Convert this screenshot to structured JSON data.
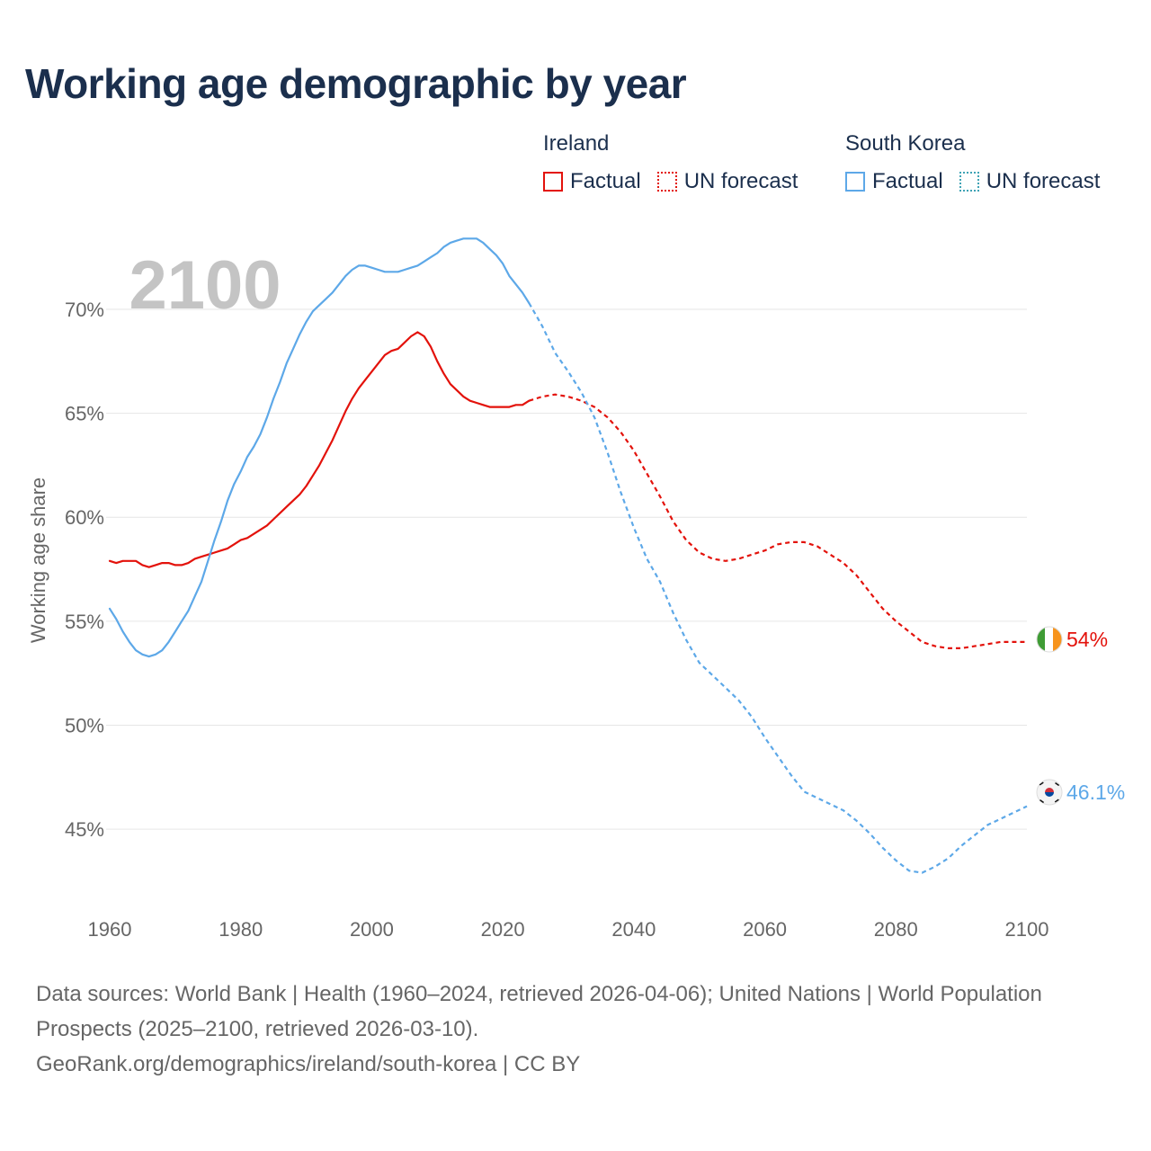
{
  "title": "Working age demographic by year",
  "year_display": "2100",
  "legend": {
    "groups": [
      {
        "name": "Ireland",
        "color": "#e3120b",
        "factual": "Factual",
        "forecast": "UN forecast"
      },
      {
        "name": "South Korea",
        "color": "#5da8e8",
        "factual": "Factual",
        "forecast": "UN forecast"
      }
    ]
  },
  "footer": {
    "sources": "Data sources: World Bank | Health (1960–2024, retrieved 2026-04-06); United Nations | World Population Prospects (2025–2100, retrieved 2026-03-10).",
    "attribution": "GeoRank.org/demographics/ireland/south-korea | CC BY"
  },
  "chart_data": {
    "type": "line",
    "title": "Working age demographic by year",
    "xlabel": "",
    "ylabel": "Working age share",
    "xlim": [
      1960,
      2100
    ],
    "ylim": [
      41.5,
      73.5
    ],
    "x_ticks": [
      1960,
      1980,
      2000,
      2020,
      2040,
      2060,
      2080,
      2100
    ],
    "y_ticks": [
      45,
      50,
      55,
      60,
      65,
      70
    ],
    "y_tick_labels": [
      "45%",
      "50%",
      "55%",
      "60%",
      "65%",
      "70%"
    ],
    "grid": true,
    "forecast_start": 2024,
    "series": [
      {
        "name": "Ireland",
        "color": "#e3120b",
        "end_label": "54%",
        "flag": "ireland-flag",
        "points": [
          [
            1960,
            57.9
          ],
          [
            1961,
            57.8
          ],
          [
            1962,
            57.9
          ],
          [
            1963,
            57.9
          ],
          [
            1964,
            57.9
          ],
          [
            1965,
            57.7
          ],
          [
            1966,
            57.6
          ],
          [
            1967,
            57.7
          ],
          [
            1968,
            57.8
          ],
          [
            1969,
            57.8
          ],
          [
            1970,
            57.7
          ],
          [
            1971,
            57.7
          ],
          [
            1972,
            57.8
          ],
          [
            1973,
            58.0
          ],
          [
            1974,
            58.1
          ],
          [
            1975,
            58.2
          ],
          [
            1976,
            58.3
          ],
          [
            1977,
            58.4
          ],
          [
            1978,
            58.5
          ],
          [
            1979,
            58.7
          ],
          [
            1980,
            58.9
          ],
          [
            1981,
            59.0
          ],
          [
            1982,
            59.2
          ],
          [
            1983,
            59.4
          ],
          [
            1984,
            59.6
          ],
          [
            1985,
            59.9
          ],
          [
            1986,
            60.2
          ],
          [
            1987,
            60.5
          ],
          [
            1988,
            60.8
          ],
          [
            1989,
            61.1
          ],
          [
            1990,
            61.5
          ],
          [
            1991,
            62.0
          ],
          [
            1992,
            62.5
          ],
          [
            1993,
            63.1
          ],
          [
            1994,
            63.7
          ],
          [
            1995,
            64.4
          ],
          [
            1996,
            65.1
          ],
          [
            1997,
            65.7
          ],
          [
            1998,
            66.2
          ],
          [
            1999,
            66.6
          ],
          [
            2000,
            67.0
          ],
          [
            2001,
            67.4
          ],
          [
            2002,
            67.8
          ],
          [
            2003,
            68.0
          ],
          [
            2004,
            68.1
          ],
          [
            2005,
            68.4
          ],
          [
            2006,
            68.7
          ],
          [
            2007,
            68.9
          ],
          [
            2008,
            68.7
          ],
          [
            2009,
            68.2
          ],
          [
            2010,
            67.5
          ],
          [
            2011,
            66.9
          ],
          [
            2012,
            66.4
          ],
          [
            2013,
            66.1
          ],
          [
            2014,
            65.8
          ],
          [
            2015,
            65.6
          ],
          [
            2016,
            65.5
          ],
          [
            2017,
            65.4
          ],
          [
            2018,
            65.3
          ],
          [
            2019,
            65.3
          ],
          [
            2020,
            65.3
          ],
          [
            2021,
            65.3
          ],
          [
            2022,
            65.4
          ],
          [
            2023,
            65.4
          ],
          [
            2024,
            65.6
          ],
          [
            2026,
            65.8
          ],
          [
            2028,
            65.9
          ],
          [
            2030,
            65.8
          ],
          [
            2032,
            65.6
          ],
          [
            2034,
            65.3
          ],
          [
            2036,
            64.8
          ],
          [
            2038,
            64.1
          ],
          [
            2040,
            63.2
          ],
          [
            2042,
            62.1
          ],
          [
            2044,
            61.0
          ],
          [
            2046,
            59.8
          ],
          [
            2048,
            58.9
          ],
          [
            2050,
            58.3
          ],
          [
            2052,
            58.0
          ],
          [
            2054,
            57.9
          ],
          [
            2056,
            58.0
          ],
          [
            2058,
            58.2
          ],
          [
            2060,
            58.4
          ],
          [
            2062,
            58.7
          ],
          [
            2064,
            58.8
          ],
          [
            2066,
            58.8
          ],
          [
            2068,
            58.6
          ],
          [
            2070,
            58.2
          ],
          [
            2072,
            57.8
          ],
          [
            2074,
            57.2
          ],
          [
            2076,
            56.4
          ],
          [
            2078,
            55.6
          ],
          [
            2080,
            55.0
          ],
          [
            2082,
            54.5
          ],
          [
            2084,
            54.0
          ],
          [
            2086,
            53.8
          ],
          [
            2088,
            53.7
          ],
          [
            2090,
            53.7
          ],
          [
            2092,
            53.8
          ],
          [
            2094,
            53.9
          ],
          [
            2096,
            54.0
          ],
          [
            2098,
            54.0
          ],
          [
            2100,
            54.0
          ]
        ]
      },
      {
        "name": "South Korea",
        "color": "#5da8e8",
        "end_label": "46.1%",
        "flag": "south-korea-flag",
        "points": [
          [
            1960,
            55.6
          ],
          [
            1961,
            55.1
          ],
          [
            1962,
            54.5
          ],
          [
            1963,
            54.0
          ],
          [
            1964,
            53.6
          ],
          [
            1965,
            53.4
          ],
          [
            1966,
            53.3
          ],
          [
            1967,
            53.4
          ],
          [
            1968,
            53.6
          ],
          [
            1969,
            54.0
          ],
          [
            1970,
            54.5
          ],
          [
            1971,
            55.0
          ],
          [
            1972,
            55.5
          ],
          [
            1973,
            56.2
          ],
          [
            1974,
            56.9
          ],
          [
            1975,
            57.9
          ],
          [
            1976,
            58.9
          ],
          [
            1977,
            59.8
          ],
          [
            1978,
            60.8
          ],
          [
            1979,
            61.6
          ],
          [
            1980,
            62.2
          ],
          [
            1981,
            62.9
          ],
          [
            1982,
            63.4
          ],
          [
            1983,
            64.0
          ],
          [
            1984,
            64.8
          ],
          [
            1985,
            65.7
          ],
          [
            1986,
            66.5
          ],
          [
            1987,
            67.4
          ],
          [
            1988,
            68.1
          ],
          [
            1989,
            68.8
          ],
          [
            1990,
            69.4
          ],
          [
            1991,
            69.9
          ],
          [
            1992,
            70.2
          ],
          [
            1993,
            70.5
          ],
          [
            1994,
            70.8
          ],
          [
            1995,
            71.2
          ],
          [
            1996,
            71.6
          ],
          [
            1997,
            71.9
          ],
          [
            1998,
            72.1
          ],
          [
            1999,
            72.1
          ],
          [
            2000,
            72.0
          ],
          [
            2001,
            71.9
          ],
          [
            2002,
            71.8
          ],
          [
            2003,
            71.8
          ],
          [
            2004,
            71.8
          ],
          [
            2005,
            71.9
          ],
          [
            2006,
            72.0
          ],
          [
            2007,
            72.1
          ],
          [
            2008,
            72.3
          ],
          [
            2009,
            72.5
          ],
          [
            2010,
            72.7
          ],
          [
            2011,
            73.0
          ],
          [
            2012,
            73.2
          ],
          [
            2013,
            73.3
          ],
          [
            2014,
            73.4
          ],
          [
            2015,
            73.4
          ],
          [
            2016,
            73.4
          ],
          [
            2017,
            73.2
          ],
          [
            2018,
            72.9
          ],
          [
            2019,
            72.6
          ],
          [
            2020,
            72.2
          ],
          [
            2021,
            71.6
          ],
          [
            2022,
            71.2
          ],
          [
            2023,
            70.8
          ],
          [
            2024,
            70.3
          ],
          [
            2026,
            69.2
          ],
          [
            2028,
            67.9
          ],
          [
            2030,
            67.0
          ],
          [
            2032,
            66.0
          ],
          [
            2034,
            64.8
          ],
          [
            2036,
            63.1
          ],
          [
            2038,
            61.2
          ],
          [
            2040,
            59.5
          ],
          [
            2042,
            58.0
          ],
          [
            2044,
            56.9
          ],
          [
            2046,
            55.4
          ],
          [
            2048,
            54.1
          ],
          [
            2050,
            53.0
          ],
          [
            2052,
            52.4
          ],
          [
            2054,
            51.8
          ],
          [
            2056,
            51.2
          ],
          [
            2058,
            50.4
          ],
          [
            2060,
            49.4
          ],
          [
            2062,
            48.5
          ],
          [
            2064,
            47.6
          ],
          [
            2066,
            46.8
          ],
          [
            2068,
            46.5
          ],
          [
            2070,
            46.2
          ],
          [
            2072,
            45.9
          ],
          [
            2074,
            45.4
          ],
          [
            2076,
            44.8
          ],
          [
            2078,
            44.1
          ],
          [
            2080,
            43.5
          ],
          [
            2082,
            43.0
          ],
          [
            2084,
            42.9
          ],
          [
            2086,
            43.2
          ],
          [
            2088,
            43.6
          ],
          [
            2090,
            44.2
          ],
          [
            2092,
            44.7
          ],
          [
            2094,
            45.2
          ],
          [
            2096,
            45.5
          ],
          [
            2098,
            45.8
          ],
          [
            2100,
            46.1
          ]
        ]
      }
    ]
  }
}
